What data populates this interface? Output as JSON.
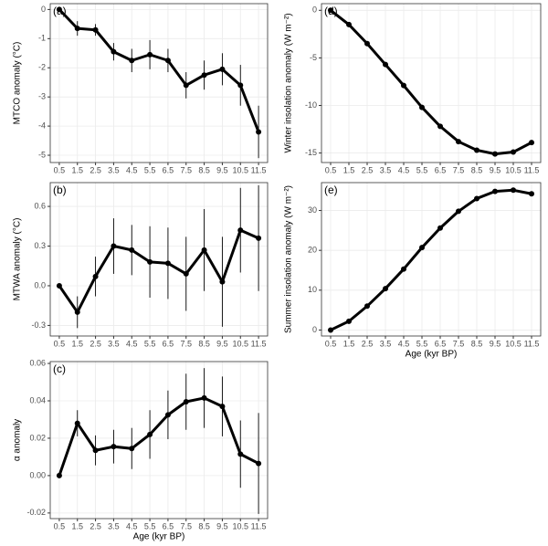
{
  "chart_data": [
    {
      "type": "line",
      "panel_label": "(a)",
      "y_label": "MTCO anomaly (°C)",
      "color": "#000000",
      "grid": true,
      "categories": [
        "0.5",
        "1.5",
        "2.5",
        "3.5",
        "4.5",
        "5.5",
        "6.5",
        "7.5",
        "8.5",
        "9.5",
        "10.5",
        "11.5"
      ],
      "values": [
        0,
        -0.65,
        -0.7,
        -1.45,
        -1.75,
        -1.55,
        -1.75,
        -2.6,
        -2.25,
        -2.05,
        -2.6,
        -4.2
      ],
      "errors": [
        0,
        0.25,
        0.2,
        0.3,
        0.4,
        0.5,
        0.4,
        0.45,
        0.5,
        0.55,
        0.7,
        0.9
      ],
      "ylim": [
        -5.25,
        0.2
      ],
      "yticks": [
        0,
        -1,
        -2,
        -3,
        -4,
        -5
      ]
    },
    {
      "type": "line",
      "panel_label": "(b)",
      "y_label": "MTWA anomaly (°C)",
      "color": "#000000",
      "grid": true,
      "categories": [
        "0.5",
        "1.5",
        "2.5",
        "3.5",
        "4.5",
        "5.5",
        "6.5",
        "7.5",
        "8.5",
        "9.5",
        "10.5",
        "11.5"
      ],
      "values": [
        0,
        -0.2,
        0.07,
        0.3,
        0.27,
        0.18,
        0.17,
        0.09,
        0.27,
        0.03,
        0.42,
        0.36
      ],
      "errors": [
        0,
        0.12,
        0.15,
        0.21,
        0.19,
        0.27,
        0.27,
        0.28,
        0.31,
        0.34,
        0.32,
        0.4
      ],
      "ylim": [
        -0.38,
        0.78
      ],
      "yticks": [
        0.6,
        0.3,
        {
          "value": 0,
          "label": "0.0"
        },
        -0.3
      ]
    },
    {
      "type": "line",
      "panel_label": "(c)",
      "y_label": "α anomaly",
      "x_label": "Age (kyr BP)",
      "color": "#000000",
      "grid": true,
      "categories": [
        "0.5",
        "1.5",
        "2.5",
        "3.5",
        "4.5",
        "5.5",
        "6.5",
        "7.5",
        "8.5",
        "9.5",
        "10.5",
        "11.5"
      ],
      "values": [
        0,
        0.028,
        0.0135,
        0.0155,
        0.0145,
        0.022,
        0.0325,
        0.0395,
        0.0415,
        0.037,
        0.0115,
        0.0065
      ],
      "errors": [
        0,
        0.007,
        0.008,
        0.009,
        0.011,
        0.013,
        0.013,
        0.015,
        0.016,
        0.016,
        0.018,
        0.027
      ],
      "ylim": [
        -0.023,
        0.061
      ],
      "yticks": [
        0.06,
        0.04,
        0.02,
        {
          "value": 0,
          "label": "0.00"
        },
        -0.02
      ]
    },
    {
      "type": "line",
      "panel_label": "(d)",
      "y_label": "Winter insolation anomaly (W m⁻²)",
      "color": "#000000",
      "grid": true,
      "categories": [
        "0.5",
        "1.5",
        "2.5",
        "3.5",
        "4.5",
        "5.5",
        "6.5",
        "7.5",
        "8.5",
        "9.5",
        "10.5",
        "11.5"
      ],
      "values": [
        0,
        -1.5,
        -3.5,
        -5.7,
        -7.9,
        -10.2,
        -12.2,
        -13.8,
        -14.7,
        -15.1,
        -14.9,
        -13.9
      ],
      "ylim": [
        -16,
        0.7
      ],
      "yticks": [
        0,
        -5,
        -10,
        -15
      ]
    },
    {
      "type": "line",
      "panel_label": "(e)",
      "y_label": "Summer insolation anomaly (W m⁻²)",
      "x_label": "Age (kyr BP)",
      "color": "#000000",
      "grid": true,
      "categories": [
        "0.5",
        "1.5",
        "2.5",
        "3.5",
        "4.5",
        "5.5",
        "6.5",
        "7.5",
        "8.5",
        "9.5",
        "10.5",
        "11.5"
      ],
      "values": [
        0,
        2.2,
        6,
        10.4,
        15.3,
        20.7,
        25.6,
        29.8,
        33,
        34.8,
        35.1,
        34.2
      ],
      "ylim": [
        -1.5,
        37
      ],
      "yticks": [
        0,
        10,
        20,
        30
      ]
    }
  ]
}
